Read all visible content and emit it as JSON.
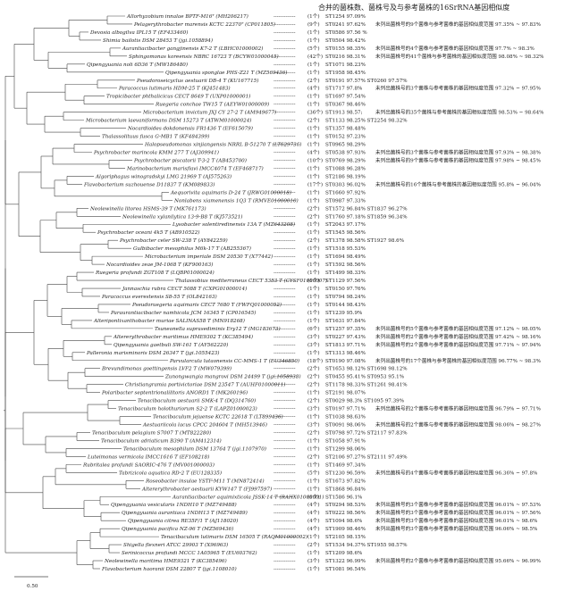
{
  "header": "合并的菌株数、菌株号及与参考菌株的16SrRNA基因相似度",
  "scale_label": "0.50",
  "colors": {
    "line": "#444444",
    "text": "#222222"
  },
  "rows": [
    {
      "taxon": "Allorhyzobium innalae BPTF-M16ᵀ (MH206217)",
      "count": "(1个)",
      "match": "ST1254 97.09%",
      "note": ""
    },
    {
      "taxon": "Pelagerythrobacter marensis KCTC 22370ᵀ (CP011805)",
      "count": "(9个)",
      "match": "ST0241 97.62%",
      "note": "未列出菌株号的9个菌株与参考菌株的基因相似度范围 97.35% ~ 97.83%"
    },
    {
      "taxon": "Devosia albogilva IPL15 T (EF433460)",
      "count": "(1个)",
      "match": "ST0586 97.56 %",
      "note": ""
    },
    {
      "taxon": "Shimia bailotis DSM 28453 T (jgi.1058894)",
      "count": "(1个)",
      "match": "ST0504 98.42%",
      "note": ""
    },
    {
      "taxon": "Aurantiacibacter gangjinensis K7-2 T (LBHC01000002)",
      "count": "(5个)",
      "match": "ST0155 98.35%",
      "note": "未列出菌株号的4个菌株与参考菌株的基因相似度范围 97.7% ~ 98.3%"
    },
    {
      "taxon": "Sphingomonas koreensis NBRC 16723 T (BCYW01000045)",
      "count": "(42个)",
      "match": "ST0216 98.31%",
      "note": "未列出菌株号的41个菌株与参考菌株的基因相似度范围 98.08% ~ 98.32%"
    },
    {
      "taxon": "Qipengyuania noli 6D36 T (MW186480)",
      "count": "(1个)",
      "match": "ST1071 98.23%",
      "note": ""
    },
    {
      "taxon": "Qipengyuania sponglae PHS-Z21 T (MZ569436)",
      "count": "(1个)",
      "match": "ST1958 98.45%",
      "note": ""
    },
    {
      "taxon": "Pseudoroseicyclus aestuarii DB-4 T (KU167715)",
      "count": "(2个)",
      "match": "ST0191 97.57% ST0260 97.57%",
      "note": ""
    },
    {
      "taxon": "Paracoccus lutimaris HDM-25 T (KJ451483)",
      "count": "(4个)",
      "match": "ST1717 97.8%",
      "note": "未列出菌株号的3个菌株与参考菌株的基因相似度范围 97.32% ~ 97.95%"
    },
    {
      "taxon": "Tropicibacter phthalicicus CECT 8649 T (UXP01000001)",
      "count": "(1个)",
      "match": "ST1697 97.54%",
      "note": ""
    },
    {
      "taxon": "Ruegeria conchae TW15 T (AEYW01000009)",
      "count": "(1个)",
      "match": "ST0367 98.46%",
      "note": ""
    },
    {
      "taxon": "Microbacterium invictum JXJ CY 27-2 T (AM949677)",
      "count": "(36个)",
      "match": "ST1913 98.57;",
      "note": "未列出菌株号的35个菌株与参考菌株的基因相似度范围 98.53% ~ 98.64%"
    },
    {
      "taxon": "Microbacterium laevaniformans DSM 15273 T (ATWM01000024)",
      "count": "(2个)",
      "match": "ST1133 98.25% ST2254 98.32%",
      "note": ""
    },
    {
      "taxon": "Nocardioides dokdonensis FR1436 T (EF615079)",
      "count": "(1个)",
      "match": "ST1357 98.48%",
      "note": ""
    },
    {
      "taxon": "Thalassolituus fusca G-MB1 T (KF484399)",
      "count": "(1个)",
      "match": "ST0152 97.23%",
      "note": ""
    },
    {
      "taxon": "Halopseudomonas xinjiangensis NRRL B-51270 T (LT629736)",
      "count": "(1个)",
      "match": "ST0965 98.29%",
      "note": ""
    },
    {
      "taxon": "Psychrobacter marincola KMM 277 T (AJ309941)",
      "count": "(4个)",
      "match": "ST0538 97.93%",
      "note": "未列出菌株号的3个菌株与参考菌株的基因相似度范围 97.93% ~ 98.38%"
    },
    {
      "taxon": "Psychrobacter piscatorii T-3-2 T (AB453700)",
      "count": "(10个)",
      "match": "ST0769 98.29%",
      "note": "未列出菌株号的9个菌株与参考菌株的基因相似度范围 97.98% ~ 98.45%"
    },
    {
      "taxon": "Marinobacterium marisflavi IMCC4074 T (EF468717)",
      "count": "(1个)",
      "match": "ST1088 96.28%",
      "note": ""
    },
    {
      "taxon": "Algoriphagus winogradskyi LMG 21969 T (AJ575263)",
      "count": "(1个)",
      "match": "ST2186 98.19%",
      "note": ""
    },
    {
      "taxon": "Flavobacterium suzhouense D11837 T (KM089833)",
      "count": "(17个)",
      "match": "ST0303 96.02%",
      "note": "未列出菌株号的16个菌株与参考菌株的基因相似度范围 95.8% ~ 96.04%"
    },
    {
      "taxon": "Aequorivita aquimaris D-24 T (JRWG01000018)",
      "count": "(1个)",
      "match": "ST1660 97.92%",
      "note": ""
    },
    {
      "taxon": "Nonlabens xiamenensis 1Q3 T (RMVE01000010)",
      "count": "(1个)",
      "match": "ST0987 97.33%",
      "note": ""
    },
    {
      "taxon": "Neolewinella litorea HSMS-39 T (MK761173)",
      "count": "(2个)",
      "match": "ST1572 96.84% ST1837 96.27%",
      "note": ""
    },
    {
      "taxon": "Neolewinella xylanilytica 13-9-B8 T (KJ573521)",
      "count": "(2个)",
      "match": "ST1760 97.18% ST1859 96.34%",
      "note": ""
    },
    {
      "taxon": "Lysobacter solentiredinensis 13A T (MZ643208)",
      "count": "(1个)",
      "match": "ST2043 97.17%",
      "note": ""
    },
    {
      "taxon": "Psychrobacter oceani 4k5 T (AB910522)",
      "count": "(1个)",
      "match": "ST1545 98.56%",
      "note": ""
    },
    {
      "taxon": "Psychrobacter celer SW-238 T (AY842259)",
      "count": "(2个)",
      "match": "ST1378 98.58% ST1927 98.6%",
      "note": ""
    },
    {
      "taxon": "Gulbibacter mesophilus M6k-17 T (AB255367)",
      "count": "(1个)",
      "match": "ST1518 95.53%",
      "note": ""
    },
    {
      "taxon": "Microbacterium imperiale DSM 20530 T (X77442)",
      "count": "(1个)",
      "match": "ST1694 98.49%",
      "note": ""
    },
    {
      "taxon": "Nocardioides zeae JM-1068 T (KF900163)",
      "count": "(1个)",
      "match": "ST1592 98.56%",
      "note": ""
    },
    {
      "taxon": "Ruegeria profundi ZGT108 T (LQBP01000024)",
      "count": "(1个)",
      "match": "ST1499 98.33%",
      "note": ""
    },
    {
      "taxon": "Thalassobius mediterraneus CECT 5383 T (CYSF01000007)",
      "count": "(1个)",
      "match": "ST1129 97.56%",
      "note": ""
    },
    {
      "taxon": "Jannaschia rubra CECT 5088 T (CXPG01000014)",
      "count": "(1个)",
      "match": "ST0150 97.76%",
      "note": ""
    },
    {
      "taxon": "Paracoccus everestensis S8-55 T (OL842163)",
      "count": "(1个)",
      "match": "ST0794 98.24%",
      "note": ""
    },
    {
      "taxon": "Pseudoruegeria aquimaris CECT 7680 T (FWFQ01000052)",
      "count": "(1个)",
      "match": "ST0144 98.43%",
      "note": ""
    },
    {
      "taxon": "Paraurantiacibacter namhicola JCM 16345 T (CP016545)",
      "count": "(1个)",
      "match": "ST1239 95.9%",
      "note": ""
    },
    {
      "taxon": "Alteripontixanthobacter muriae SALINAS58 T (MN918268)",
      "count": "(1个)",
      "match": "ST1631 97.84%",
      "note": ""
    },
    {
      "taxon": "Tsuneonella suprasediminis Ery12 T (MG183673)",
      "count": "(6个)",
      "match": "ST1257 97.35%",
      "note": "未列出菌株号的5个菌株与参考菌株的基因相似度范围 97.12% ~ 98.05%"
    },
    {
      "taxon": "Altererythrobacter maritimus HME9302 T (KC385494)",
      "count": "(3个)",
      "match": "ST0227 97.43%",
      "note": "未列出菌株号的2个菌株与参考菌株的基因相似度范围 97.42% ~ 98.16%"
    },
    {
      "taxon": "Qipengyuania gaetbuli SW-161 T (AY562220)",
      "count": "(3个)",
      "match": "ST1813 97.71%",
      "note": "未列出菌株号的2个菌株与参考菌株的基因相似度范围 97.71% ~ 97.94%"
    },
    {
      "taxon": "Palleronia marisminoris DSM 26347 T (jgi.1055423)",
      "count": "(1个)",
      "match": "ST1313 98.46%",
      "note": ""
    },
    {
      "taxon": "Parvularcula lutaonensis CC-MMS-1 T (EU346850)",
      "count": "(18个)",
      "match": "ST0190 97.08%",
      "note": "未列出菌株号的17个菌株与参考菌株的基因相似度范围 96.77% ~ 98.3%"
    },
    {
      "taxon": "Brevundimonas goettingensis LVF2 T (MW079399)",
      "count": "(2个)",
      "match": "ST1653 98.12% ST1698 98.12%",
      "note": ""
    },
    {
      "taxon": "Zunongwangia mangrovi DSM 24499 T (jgi.1058938)",
      "count": "(2个)",
      "match": "ST0455 95.41% ST0953 95.1%",
      "note": ""
    },
    {
      "taxon": "Christiangramia portivictoriae DSM 23547 T (AUHF01000011)",
      "count": "(2个)",
      "match": "ST1178 98.33% ST1261 98.41%",
      "note": ""
    },
    {
      "taxon": "Polaribacter septentrionalilitoris ANORD1 T (MK260196)",
      "count": "(1个)",
      "match": "ST2191 98.07%",
      "note": ""
    },
    {
      "taxon": "Tenacibaculum aestuarii SMK-4 T (DQ314760)",
      "count": "(2个)",
      "match": "ST0029 98.3% ST1095 97.39%",
      "note": ""
    },
    {
      "taxon": "Tenacibaculum holothuriorum S2-2 T (LAPZ01000023)",
      "count": "(3个)",
      "match": "ST0197 97.71%",
      "note": "未列出菌株号的2个菌株与参考菌株的基因相似度范围 96.79% ~ 97.71%"
    },
    {
      "taxon": "Tenacibaculum jejuense KCTC 22618 T (LT899436)",
      "count": "(1个)",
      "match": "ST1038 98.63%",
      "note": ""
    },
    {
      "taxon": "Aestuariicola lacus CPCC 204604 T (MH513946)",
      "count": "(3个)",
      "match": "ST0091 98.06%",
      "note": "未列出菌株号的2个菌株与参考菌株的基因相似度范围 98.06% ~ 98.27%"
    },
    {
      "taxon": "Tenacibaculum pelagium S7007 T (MT822280)",
      "count": "(2个)",
      "match": "ST0798 97.72% ST2117 97.83%",
      "note": ""
    },
    {
      "taxon": "Tenacibaculum adriaticum B390 T (AM412314)",
      "count": "(1个)",
      "match": "ST1058 97.91%",
      "note": ""
    },
    {
      "taxon": "Tenacibaculum mesophilum DSM 13764 T (jgi.1107970)",
      "count": "(1个)",
      "match": "ST1299 98.06%",
      "note": ""
    },
    {
      "taxon": "Luteimonas vermicola IMCC1616 T (EF108218)",
      "count": "(2个)",
      "match": "ST2106 97.27% ST2111 97.49%",
      "note": ""
    },
    {
      "taxon": "Rubritalea profundi SAORIC-476 T (MV001000003)",
      "count": "(1个)",
      "match": "ST1469 97.34%",
      "note": ""
    },
    {
      "taxon": "Tabrizicola aquatica RD-2 T (EU128335)",
      "count": "(5个)",
      "match": "ST1230 96.59%",
      "note": "未列出菌株号的4个菌株与参考菌株的基因相似度范围 96.36% ~ 97.8%"
    },
    {
      "taxon": "Roseobacter insulae YSTF-M11 T (MN872414)",
      "count": "(1个)",
      "match": "ST1673 97.82%",
      "note": ""
    },
    {
      "taxon": "Altererythrobacter aestuarii KYW147 T (FJ997597)",
      "count": "(1个)",
      "match": "ST1868 96.84%",
      "note": ""
    },
    {
      "taxon": "Aurantiacibacter aquimixticola JSSK-14 T (RAHX01000001)",
      "count": "(1个)",
      "match": "ST1586 96.1%",
      "note": ""
    },
    {
      "taxon": "Qipengyuania vesicularis 1NDH10 T (MZ749488)",
      "count": "(4个)",
      "match": "ST0294 98.53%",
      "note": "未列出菌株号的3个菌株与参考菌株的基因相似度范围 96.01% ~ 97.53%"
    },
    {
      "taxon": "Qipengyuania aurantiaca 1NDH13 T (MZ749489)",
      "count": "(4个)",
      "match": "ST0222 98.56%",
      "note": "未列出菌株号的3个菌株与参考菌株的基因相似度范围 96.01% ~ 97.56%"
    },
    {
      "taxon": "Qipengyuania citrea RE35F/1 T (AJ118020)",
      "count": "(4个)",
      "match": "ST1094 98.6%",
      "note": "未列出菌株号的3个菌株与参考菌株的基因相似度范围 96.01% ~ 98.6%"
    },
    {
      "taxon": "Qipengyuania pacifica NZ-96 T (MZ569436)",
      "count": "(4个)",
      "match": "ST1909 98.46%",
      "note": "未列出菌株号的3个菌株与参考菌株的基因相似度范围 96.06% ~ 98.5%"
    },
    {
      "taxon": "Tenacibaculum lutimaris DSM 16505 T (RAQM01000002)",
      "count": "(1个)",
      "match": "ST2105 98.15%",
      "note": ""
    },
    {
      "taxon": "Shigella flexneri ATCC 29903 T (X96963)",
      "count": "(2个)",
      "match": "ST1534 94.37% ST1955 98.57%",
      "note": ""
    },
    {
      "taxon": "Serinicoccus profundi MCCC 1A05965 T (EU603762)",
      "count": "(1个)",
      "match": "ST1209 98.6%",
      "note": ""
    },
    {
      "taxon": "Neolewinella maritima HME9321 T (KC385496)",
      "count": "(3个)",
      "match": "ST1322 96.99%",
      "note": "未列出菌株号的2个菌株与参考菌株的基因相似度范围 95.66% ~ 96.99%"
    },
    {
      "taxon": "Flavobacterium haoranii DSM 22807 T (jgi.1108010)",
      "count": "(1个)",
      "match": "ST1081 96.54%",
      "note": ""
    }
  ]
}
